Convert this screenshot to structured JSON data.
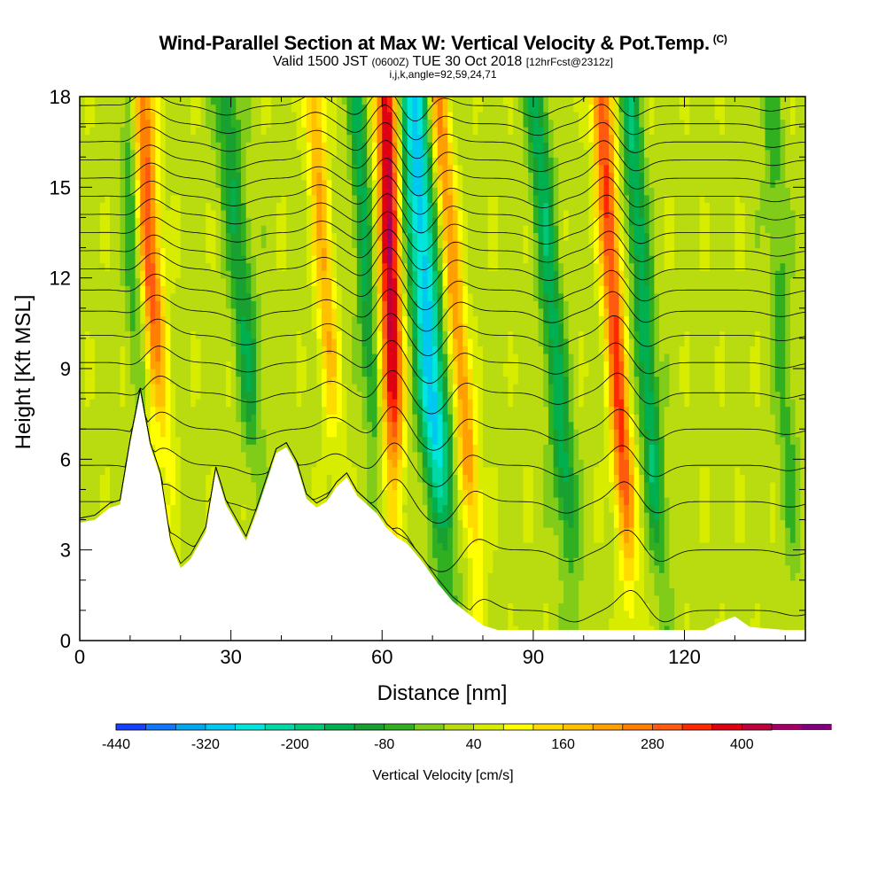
{
  "chart_data": {
    "type": "heatmap",
    "title": "Wind-Parallel Section at Max W: Vertical Velocity & Pot.Temp.",
    "title_mark": "(C)",
    "subtitle_parts": [
      "Valid 1500 JST",
      "(0600Z)",
      "TUE 30 Oct 2018",
      "[12hrFcst@2312z]"
    ],
    "subtitle2": "i,j,k,angle=92,59,24,71",
    "xlabel": "Distance [nm]",
    "ylabel": "Height [Kft MSL]",
    "xlim": [
      0,
      144
    ],
    "ylim": [
      0,
      18
    ],
    "x_ticks": [
      "0",
      "30",
      "60",
      "90",
      "120"
    ],
    "y_ticks": [
      "0",
      "3",
      "6",
      "9",
      "12",
      "15",
      "18"
    ],
    "colorbar": {
      "label": "Vertical Velocity [cm/s]",
      "range": [
        -440,
        440
      ],
      "step": 40,
      "tick_labels": [
        "-440",
        "-320",
        "-200",
        "-80",
        "40",
        "160",
        "280",
        "400"
      ],
      "colors": [
        "#0000ff",
        "#1a40ff",
        "#0f78ff",
        "#00a8f0",
        "#00c8f0",
        "#00e6dc",
        "#00d8a8",
        "#00c878",
        "#00b050",
        "#18a030",
        "#30b020",
        "#80cc18",
        "#b8dc10",
        "#d8ec00",
        "#ffff00",
        "#ffdc00",
        "#ffc000",
        "#ffa000",
        "#ff8000",
        "#ff5a10",
        "#ff2800",
        "#e00014",
        "#c0003c",
        "#a00064",
        "#80007a",
        "#5a0082"
      ]
    },
    "terrain_kft": [
      [
        0,
        3.9
      ],
      [
        3,
        4
      ],
      [
        6,
        4.4
      ],
      [
        8,
        4.5
      ],
      [
        10,
        6.5
      ],
      [
        12,
        8.2
      ],
      [
        14,
        6.4
      ],
      [
        16,
        5.4
      ],
      [
        18,
        3.2
      ],
      [
        20,
        2.4
      ],
      [
        22,
        2.7
      ],
      [
        25,
        3.6
      ],
      [
        27,
        5.6
      ],
      [
        29,
        4.5
      ],
      [
        31,
        3.9
      ],
      [
        33,
        3.3
      ],
      [
        35,
        4.2
      ],
      [
        37,
        5.2
      ],
      [
        39,
        6.2
      ],
      [
        41,
        6.4
      ],
      [
        43,
        5.8
      ],
      [
        45,
        4.7
      ],
      [
        47,
        4.4
      ],
      [
        49,
        4.6
      ],
      [
        51,
        5.1
      ],
      [
        53,
        5.4
      ],
      [
        55,
        4.8
      ],
      [
        57,
        4.5
      ],
      [
        59,
        4.2
      ],
      [
        61,
        3.7
      ],
      [
        63,
        3.4
      ],
      [
        65,
        3.2
      ],
      [
        68,
        2.6
      ],
      [
        71,
        1.9
      ],
      [
        74,
        1.3
      ],
      [
        77,
        0.9
      ],
      [
        80,
        0.5
      ],
      [
        83,
        0.35
      ],
      [
        90,
        0.35
      ],
      [
        100,
        0.35
      ],
      [
        110,
        0.35
      ],
      [
        124,
        0.35
      ],
      [
        127,
        0.6
      ],
      [
        130,
        0.8
      ],
      [
        133,
        0.45
      ],
      [
        140,
        0.35
      ],
      [
        144,
        0.35
      ]
    ],
    "updraft_bands": [
      {
        "x_base": 15,
        "tilt_nm_per_kft": -0.3,
        "width_nm": 2.5,
        "amplitude_cms": 300
      },
      {
        "x_base": 50,
        "tilt_nm_per_kft": -0.35,
        "width_nm": 2.0,
        "amplitude_cms": 170
      },
      {
        "x_base": 62,
        "tilt_nm_per_kft": -0.1,
        "width_nm": 2.2,
        "amplitude_cms": 400
      },
      {
        "x_base": 76,
        "tilt_nm_per_kft": -0.5,
        "width_nm": 2.0,
        "amplitude_cms": 220
      },
      {
        "x_base": 107,
        "tilt_nm_per_kft": -0.35,
        "width_nm": 2.0,
        "amplitude_cms": 300
      }
    ],
    "downdraft_bands": [
      {
        "x_base": 12,
        "tilt_nm_per_kft": -0.2,
        "width_nm": 1.8,
        "amplitude_cms": -180
      },
      {
        "x_base": 34,
        "tilt_nm_per_kft": -0.5,
        "width_nm": 2.4,
        "amplitude_cms": -140
      },
      {
        "x_base": 58,
        "tilt_nm_per_kft": -0.3,
        "width_nm": 1.8,
        "amplitude_cms": -160
      },
      {
        "x_base": 70,
        "tilt_nm_per_kft": -0.4,
        "width_nm": 3.0,
        "amplitude_cms": -330
      },
      {
        "x_base": 95,
        "tilt_nm_per_kft": -0.45,
        "width_nm": 2.2,
        "amplitude_cms": -170
      },
      {
        "x_base": 113,
        "tilt_nm_per_kft": -0.4,
        "width_nm": 2.0,
        "amplitude_cms": -180
      },
      {
        "x_base": 140,
        "tilt_nm_per_kft": -0.3,
        "width_nm": 2.0,
        "amplitude_cms": -80
      }
    ],
    "isentrope_heights_kft": [
      1,
      3,
      4.6,
      5.8,
      7,
      8.2,
      9.2,
      10.1,
      10.9,
      11.6,
      12.3,
      12.9,
      13.5,
      14.1,
      14.7,
      15.3,
      15.9,
      16.5,
      17.1,
      17.7
    ]
  }
}
